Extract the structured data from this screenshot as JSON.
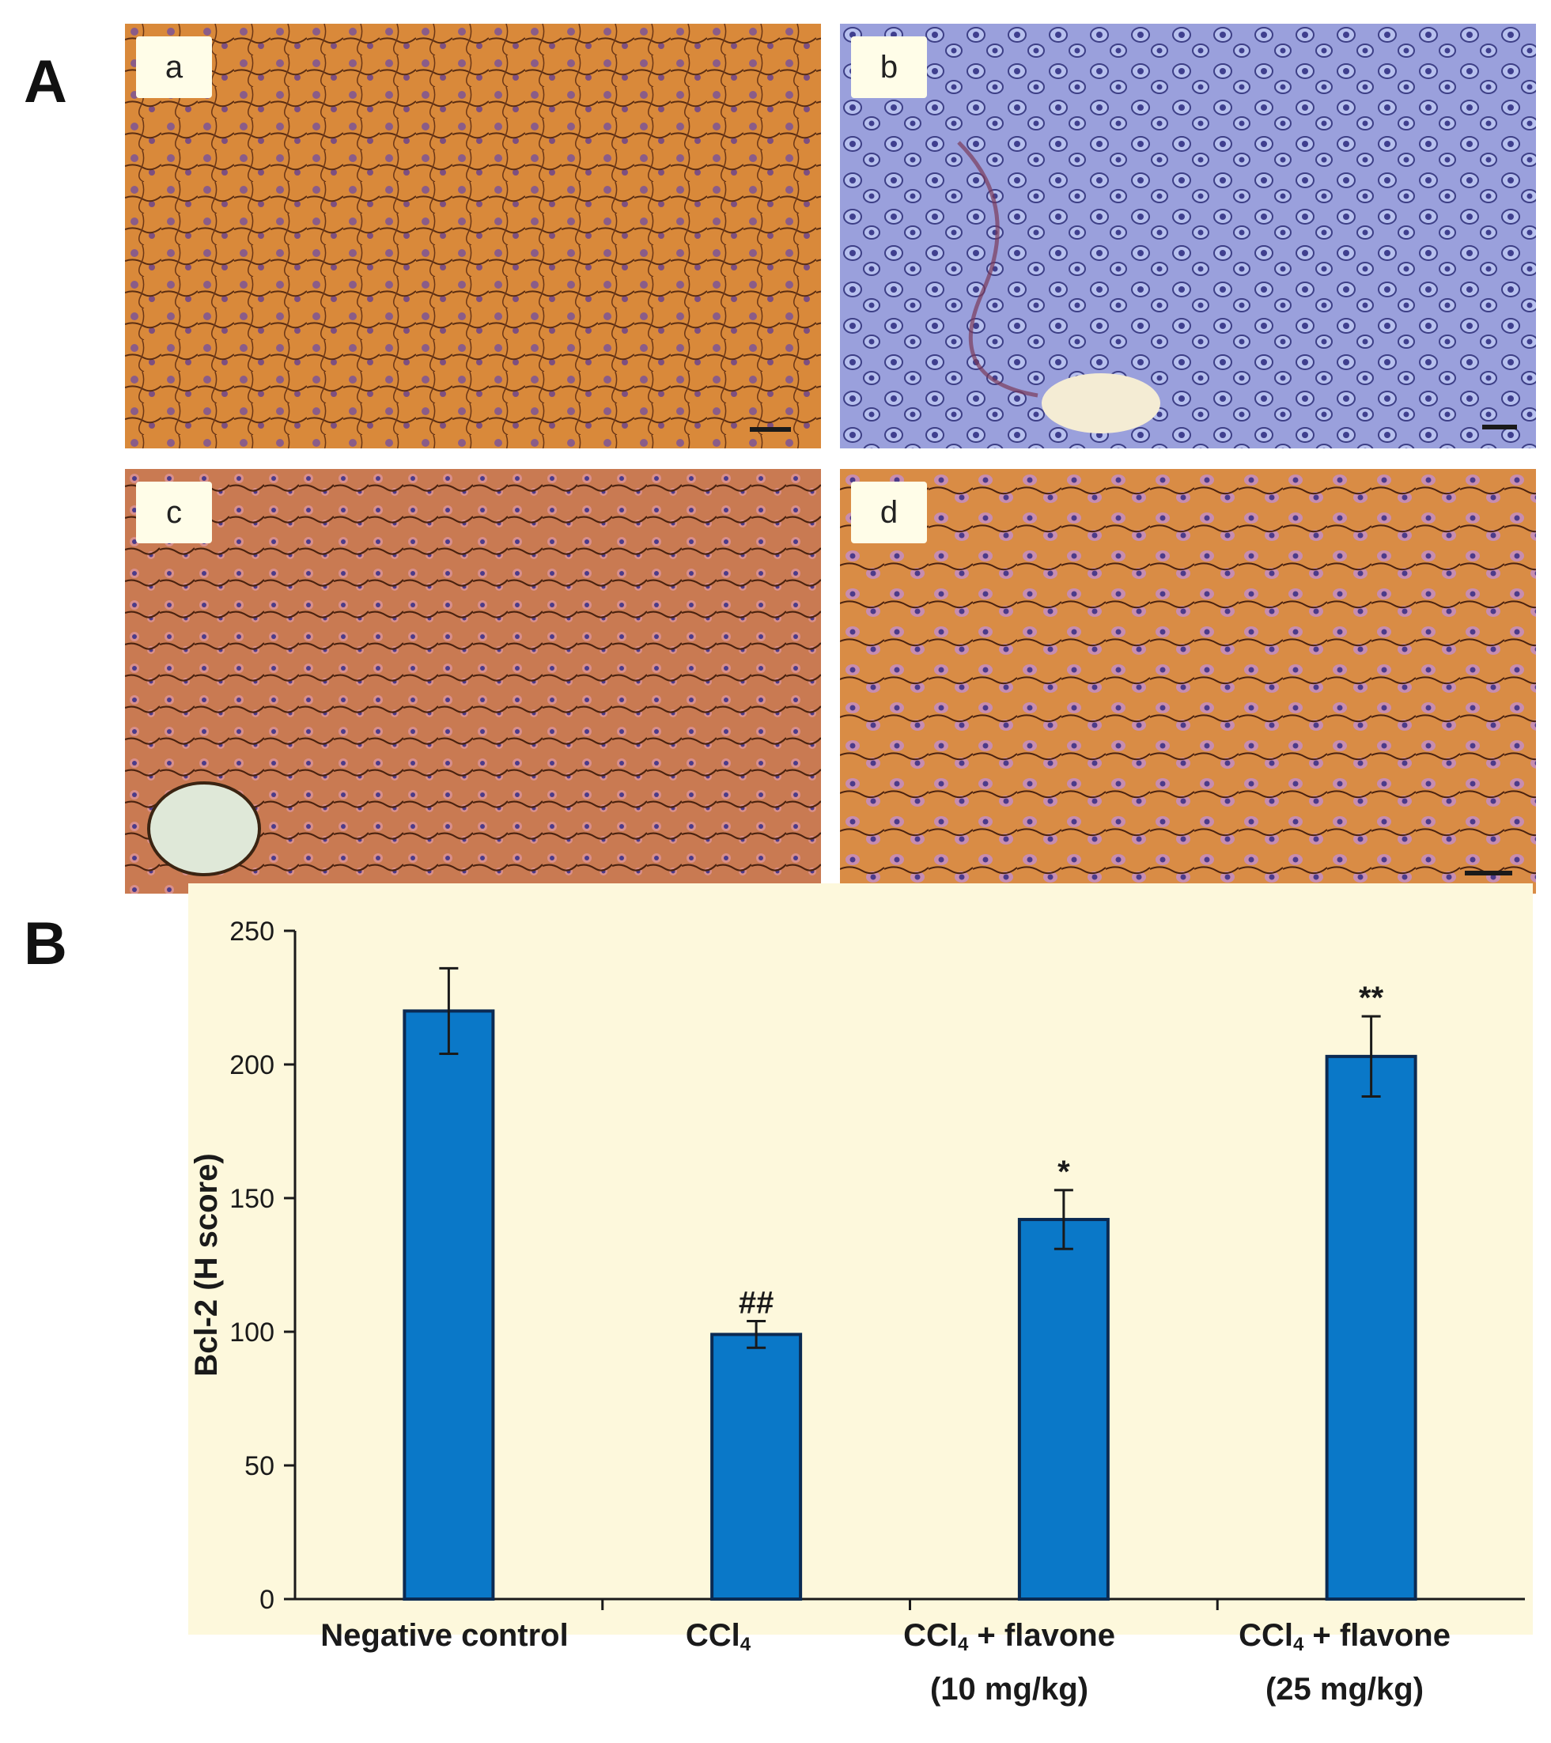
{
  "panels": {
    "A": "A",
    "B": "B"
  },
  "micrographs": [
    {
      "label": "a",
      "stain": "brown"
    },
    {
      "label": "b",
      "stain": "blue"
    },
    {
      "label": "c",
      "stain": "red-brown"
    },
    {
      "label": "d",
      "stain": "orange-brown"
    }
  ],
  "colors": {
    "bar": "#0a78c8",
    "bar_edge": "#0b2a52",
    "plot_bg": "#fdf8dc",
    "axis": "#1a1a1a"
  },
  "chart_data": {
    "type": "bar",
    "title": "",
    "ylabel": "Bcl-2  (H score)",
    "xlabel": "",
    "ylim": [
      0,
      250
    ],
    "yticks": [
      0,
      50,
      100,
      150,
      200,
      250
    ],
    "categories": [
      {
        "name": "Negative control",
        "sub": "",
        "rest": "",
        "line2": ""
      },
      {
        "name": "CCl",
        "sub": "4",
        "rest": "",
        "line2": ""
      },
      {
        "name": "CCl",
        "sub": "4",
        "rest": " + flavone",
        "line2": "(10 mg/kg)"
      },
      {
        "name": "CCl",
        "sub": "4",
        "rest": " + flavone",
        "line2": "(25 mg/kg)"
      }
    ],
    "values": [
      220,
      99,
      142,
      203
    ],
    "errors": [
      16,
      5,
      11,
      15
    ],
    "annotations": [
      "",
      "##",
      "*",
      "**"
    ]
  }
}
